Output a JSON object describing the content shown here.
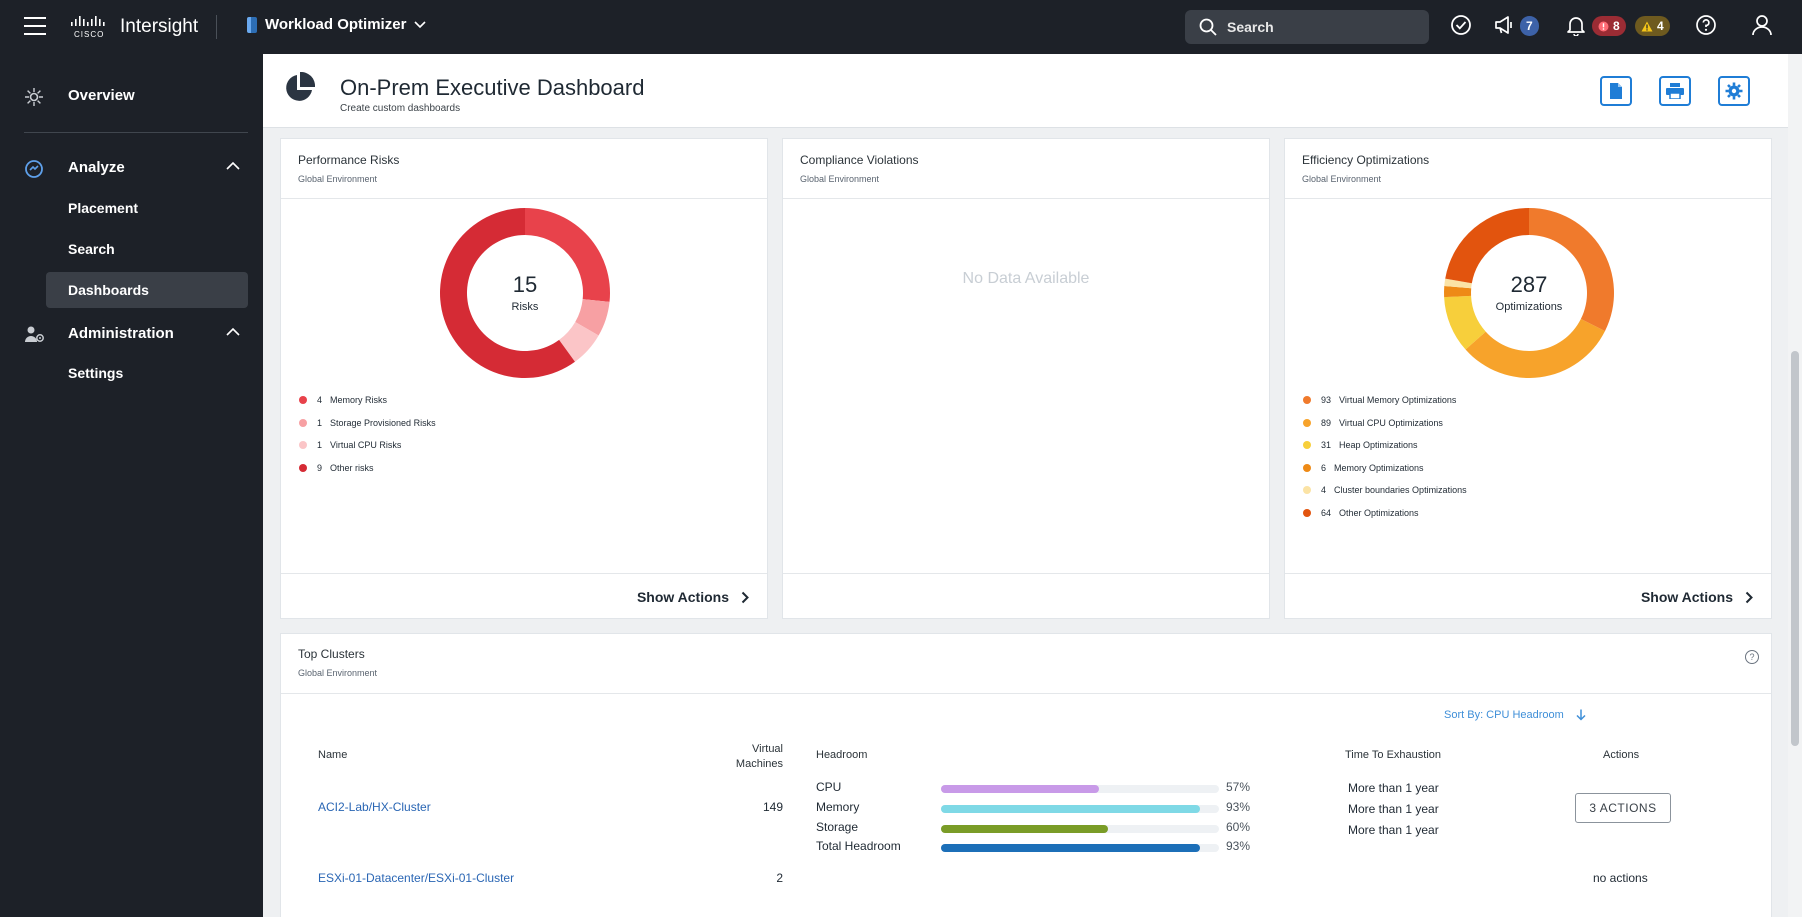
{
  "app": {
    "brand": "Intersight",
    "module": "Workload Optimizer"
  },
  "topbar": {
    "search_label": "Search",
    "announcements_count": "7",
    "critical_alarms": "8",
    "warning_alarms": "4"
  },
  "sidebar": {
    "overview": "Overview",
    "analyze": "Analyze",
    "placement": "Placement",
    "search": "Search",
    "dashboards": "Dashboards",
    "administration": "Administration",
    "settings": "Settings"
  },
  "header": {
    "title": "On-Prem Executive Dashboard",
    "subtitle": "Create custom dashboards"
  },
  "performance": {
    "title": "Performance Risks",
    "subtitle": "Global Environment",
    "total": "15",
    "total_label": "Risks",
    "items": [
      {
        "count": "4",
        "label": "Memory Risks",
        "value": 4,
        "color": "#e8424b"
      },
      {
        "count": "1",
        "label": "Storage Provisioned Risks",
        "value": 1,
        "color": "#f7a0a3"
      },
      {
        "count": "1",
        "label": "Virtual CPU Risks",
        "value": 1,
        "color": "#fbc5c7"
      },
      {
        "count": "9",
        "label": "Other risks",
        "value": 9,
        "color": "#d52b35"
      }
    ],
    "action": "Show Actions"
  },
  "compliance": {
    "title": "Compliance Violations",
    "subtitle": "Global Environment",
    "empty": "No Data Available"
  },
  "efficiency": {
    "title": "Efficiency Optimizations",
    "subtitle": "Global Environment",
    "total": "287",
    "total_label": "Optimizations",
    "items": [
      {
        "count": "93",
        "label": "Virtual Memory Optimizations",
        "value": 93,
        "color": "#f07a2c"
      },
      {
        "count": "89",
        "label": "Virtual CPU Optimizations",
        "value": 89,
        "color": "#f7a32b"
      },
      {
        "count": "31",
        "label": "Heap Optimizations",
        "value": 31,
        "color": "#f7cf3b"
      },
      {
        "count": "6",
        "label": "Memory Optimizations",
        "value": 6,
        "color": "#ee8a16"
      },
      {
        "count": "4",
        "label": "Cluster boundaries Optimizations",
        "value": 4,
        "color": "#fbe3a5"
      },
      {
        "count": "64",
        "label": "Other Optimizations",
        "value": 64,
        "color": "#e2540e"
      }
    ],
    "action": "Show Actions"
  },
  "clusters": {
    "title": "Top Clusters",
    "subtitle": "Global Environment",
    "sort_label": "Sort By: CPU Headroom",
    "headers": {
      "name": "Name",
      "vms_1": "Virtual",
      "vms_2": "Machines",
      "headroom": "Headroom",
      "tte": "Time To Exhaustion",
      "actions": "Actions"
    },
    "rows": [
      {
        "name": "ACI2-Lab/HX-Cluster",
        "vms": "149",
        "metrics": [
          {
            "label": "CPU",
            "pct": "57%",
            "fill": 0.57,
            "color": "#c89ae8",
            "tte": "More than 1 year"
          },
          {
            "label": "Memory",
            "pct": "93%",
            "fill": 0.93,
            "color": "#7fd9e6",
            "tte": "More than 1 year"
          },
          {
            "label": "Storage",
            "pct": "60%",
            "fill": 0.6,
            "color": "#7a9c27",
            "tte": "More than 1 year"
          },
          {
            "label": "Total Headroom",
            "pct": "93%",
            "fill": 0.93,
            "color": "#1c6fb8",
            "tte": ""
          }
        ],
        "action": "3 ACTIONS"
      },
      {
        "name": "ESXi-01-Datacenter/ESXi-01-Cluster",
        "vms": "2",
        "action": "no actions"
      }
    ]
  }
}
